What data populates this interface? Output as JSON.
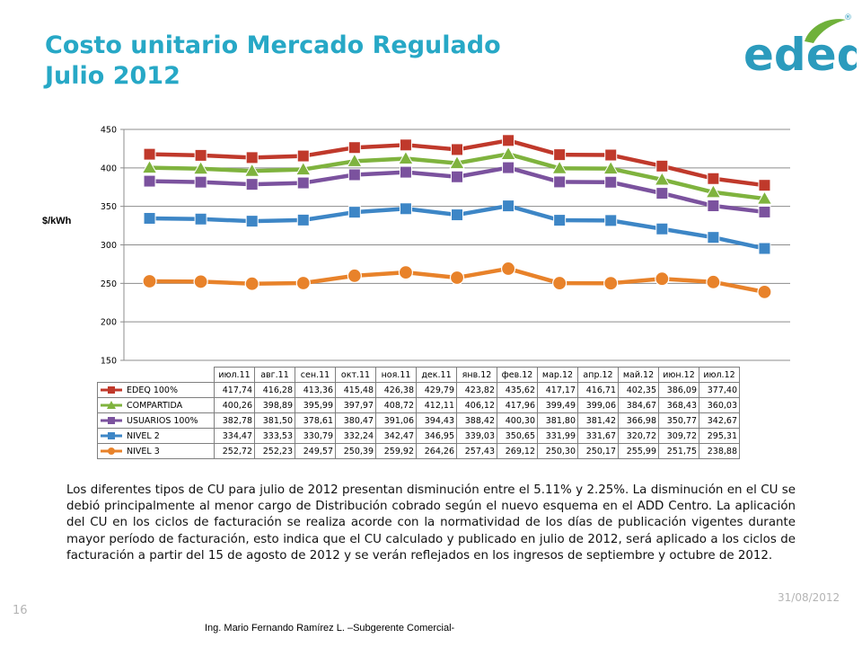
{
  "slide": {
    "title_line1": "Costo unitario Mercado Regulado",
    "title_line2": "Julio 2012",
    "logo_text": "edeq",
    "registered_mark": "®",
    "page_number": "16",
    "date": "31/08/2012",
    "footer": "Ing. Mario Fernando Ramírez L. –Subgerente Comercial-",
    "body_text": "Los diferentes tipos de CU para julio de 2012 presentan disminución entre el 5.11% y 2.25%. La disminución en el CU se debió principalmente al menor cargo de Distribución cobrado según el nuevo esquema en el ADD Centro. La aplicación del CU en los ciclos de facturación se realiza acorde con la normatividad de los días de publicación vigentes durante mayor período de facturación, esto indica que el CU calculado y publicado en julio de 2012, será aplicado a los ciclos de facturación a partir del 15 de agosto de 2012 y se verán reflejados en los ingresos de septiembre y octubre de 2012.",
    "colors": {
      "title": "#27a8c6",
      "logo_blue": "#2b9bbd",
      "logo_green": "#6fb13a"
    }
  },
  "chart_data": {
    "type": "line",
    "title": "",
    "xlabel": "",
    "ylabel": "$/kWh",
    "ylim": [
      150,
      450
    ],
    "yticks": [
      150,
      200,
      250,
      300,
      350,
      400,
      450
    ],
    "grid": true,
    "legend": "data-table",
    "categories": [
      "июл.11",
      "авг.11",
      "сен.11",
      "окт.11",
      "ноя.11",
      "дек.11",
      "янв.12",
      "фев.12",
      "мар.12",
      "апр.12",
      "май.12",
      "июн.12",
      "июл.12"
    ],
    "series": [
      {
        "name": "EDEQ 100%",
        "color": "#c0392b",
        "marker": "square",
        "values": [
          417.74,
          416.28,
          413.36,
          415.48,
          426.38,
          429.79,
          423.82,
          435.62,
          417.17,
          416.71,
          402.35,
          386.09,
          377.4
        ],
        "labels": [
          "417,74",
          "416,28",
          "413,36",
          "415,48",
          "426,38",
          "429,79",
          "423,82",
          "435,62",
          "417,17",
          "416,71",
          "402,35",
          "386,09",
          "377,40"
        ]
      },
      {
        "name": "COMPARTIDA",
        "color": "#7fb33e",
        "marker": "triangle",
        "values": [
          400.26,
          398.89,
          395.99,
          397.97,
          408.72,
          412.11,
          406.12,
          417.96,
          399.49,
          399.06,
          384.67,
          368.43,
          360.03
        ],
        "labels": [
          "400,26",
          "398,89",
          "395,99",
          "397,97",
          "408,72",
          "412,11",
          "406,12",
          "417,96",
          "399,49",
          "399,06",
          "384,67",
          "368,43",
          "360,03"
        ]
      },
      {
        "name": "USUARIOS 100%",
        "color": "#7b529e",
        "marker": "square",
        "values": [
          382.78,
          381.5,
          378.61,
          380.47,
          391.06,
          394.43,
          388.42,
          400.3,
          381.8,
          381.42,
          366.98,
          350.77,
          342.67
        ],
        "labels": [
          "382,78",
          "381,50",
          "378,61",
          "380,47",
          "391,06",
          "394,43",
          "388,42",
          "400,30",
          "381,80",
          "381,42",
          "366,98",
          "350,77",
          "342,67"
        ]
      },
      {
        "name": "NIVEL 2",
        "color": "#3d86c6",
        "marker": "square",
        "values": [
          334.47,
          333.53,
          330.79,
          332.24,
          342.47,
          346.95,
          339.03,
          350.65,
          331.99,
          331.67,
          320.72,
          309.72,
          295.31
        ],
        "labels": [
          "334,47",
          "333,53",
          "330,79",
          "332,24",
          "342,47",
          "346,95",
          "339,03",
          "350,65",
          "331,99",
          "331,67",
          "320,72",
          "309,72",
          "295,31"
        ]
      },
      {
        "name": "NIVEL 3",
        "color": "#e8822a",
        "marker": "circle",
        "values": [
          252.72,
          252.23,
          249.57,
          250.39,
          259.92,
          264.26,
          257.43,
          269.12,
          250.3,
          250.17,
          255.99,
          251.75,
          238.88
        ],
        "labels": [
          "252,72",
          "252,23",
          "249,57",
          "250,39",
          "259,92",
          "264,26",
          "257,43",
          "269,12",
          "250,30",
          "250,17",
          "255,99",
          "251,75",
          "238,88"
        ]
      }
    ]
  }
}
